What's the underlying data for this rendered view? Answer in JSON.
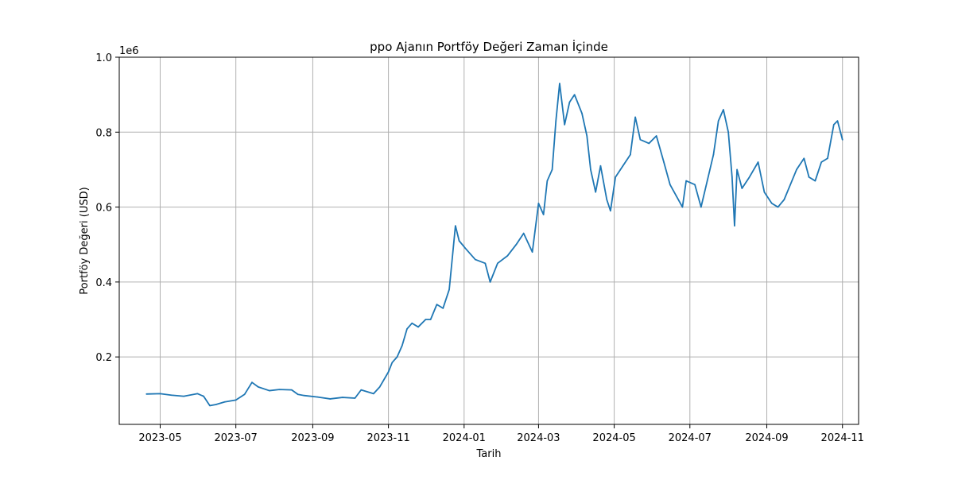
{
  "chart_data": {
    "type": "line",
    "title": "ppo Ajanın Portföy Değeri Zaman İçinde",
    "xlabel": "Tarih",
    "ylabel": "Portföy Değeri (USD)",
    "y_offset_label": "1e6",
    "grid": true,
    "legend": "none",
    "xlim": [
      "2023-03-29",
      "2024-11-14"
    ],
    "ylim": [
      0.02,
      1.0
    ],
    "x_ticks": [
      {
        "date": "2023-05-01",
        "label": "2023-05"
      },
      {
        "date": "2023-07-01",
        "label": "2023-07"
      },
      {
        "date": "2023-09-01",
        "label": "2023-09"
      },
      {
        "date": "2023-11-01",
        "label": "2023-11"
      },
      {
        "date": "2024-01-01",
        "label": "2024-01"
      },
      {
        "date": "2024-03-01",
        "label": "2024-03"
      },
      {
        "date": "2024-05-01",
        "label": "2024-05"
      },
      {
        "date": "2024-07-01",
        "label": "2024-07"
      },
      {
        "date": "2024-09-01",
        "label": "2024-09"
      },
      {
        "date": "2024-11-01",
        "label": "2024-11"
      }
    ],
    "y_ticks": [
      {
        "value": 0.2,
        "label": "0.2"
      },
      {
        "value": 0.4,
        "label": "0.4"
      },
      {
        "value": 0.6,
        "label": "0.6"
      },
      {
        "value": 0.8,
        "label": "0.8"
      },
      {
        "value": 1.0,
        "label": "1.0"
      }
    ],
    "series": [
      {
        "color": "#1f77b4",
        "points": [
          [
            "2023-04-20",
            0.101
          ],
          [
            "2023-05-01",
            0.102
          ],
          [
            "2023-05-10",
            0.098
          ],
          [
            "2023-05-20",
            0.095
          ],
          [
            "2023-05-31",
            0.102
          ],
          [
            "2023-06-05",
            0.095
          ],
          [
            "2023-06-10",
            0.07
          ],
          [
            "2023-06-15",
            0.073
          ],
          [
            "2023-06-22",
            0.08
          ],
          [
            "2023-07-01",
            0.085
          ],
          [
            "2023-07-08",
            0.1
          ],
          [
            "2023-07-14",
            0.132
          ],
          [
            "2023-07-19",
            0.12
          ],
          [
            "2023-07-28",
            0.11
          ],
          [
            "2023-08-05",
            0.113
          ],
          [
            "2023-08-15",
            0.112
          ],
          [
            "2023-08-20",
            0.1
          ],
          [
            "2023-08-25",
            0.097
          ],
          [
            "2023-09-05",
            0.093
          ],
          [
            "2023-09-15",
            0.088
          ],
          [
            "2023-09-25",
            0.092
          ],
          [
            "2023-10-05",
            0.09
          ],
          [
            "2023-10-10",
            0.112
          ],
          [
            "2023-10-20",
            0.102
          ],
          [
            "2023-10-25",
            0.12
          ],
          [
            "2023-11-01",
            0.16
          ],
          [
            "2023-11-04",
            0.185
          ],
          [
            "2023-11-08",
            0.2
          ],
          [
            "2023-11-12",
            0.23
          ],
          [
            "2023-11-16",
            0.275
          ],
          [
            "2023-11-20",
            0.29
          ],
          [
            "2023-11-25",
            0.28
          ],
          [
            "2023-12-01",
            0.3
          ],
          [
            "2023-12-05",
            0.3
          ],
          [
            "2023-12-10",
            0.34
          ],
          [
            "2023-12-15",
            0.33
          ],
          [
            "2023-12-20",
            0.38
          ],
          [
            "2023-12-25",
            0.55
          ],
          [
            "2023-12-28",
            0.51
          ],
          [
            "2024-01-02",
            0.49
          ],
          [
            "2024-01-10",
            0.46
          ],
          [
            "2024-01-18",
            0.45
          ],
          [
            "2024-01-22",
            0.4
          ],
          [
            "2024-01-28",
            0.45
          ],
          [
            "2024-02-05",
            0.47
          ],
          [
            "2024-02-12",
            0.5
          ],
          [
            "2024-02-18",
            0.53
          ],
          [
            "2024-02-25",
            0.48
          ],
          [
            "2024-03-01",
            0.61
          ],
          [
            "2024-03-05",
            0.58
          ],
          [
            "2024-03-08",
            0.67
          ],
          [
            "2024-03-12",
            0.7
          ],
          [
            "2024-03-15",
            0.83
          ],
          [
            "2024-03-18",
            0.93
          ],
          [
            "2024-03-22",
            0.82
          ],
          [
            "2024-03-26",
            0.88
          ],
          [
            "2024-03-30",
            0.9
          ],
          [
            "2024-04-05",
            0.85
          ],
          [
            "2024-04-09",
            0.79
          ],
          [
            "2024-04-12",
            0.7
          ],
          [
            "2024-04-16",
            0.64
          ],
          [
            "2024-04-20",
            0.71
          ],
          [
            "2024-04-25",
            0.62
          ],
          [
            "2024-04-28",
            0.59
          ],
          [
            "2024-05-02",
            0.68
          ],
          [
            "2024-05-08",
            0.71
          ],
          [
            "2024-05-14",
            0.74
          ],
          [
            "2024-05-18",
            0.84
          ],
          [
            "2024-05-22",
            0.78
          ],
          [
            "2024-05-29",
            0.77
          ],
          [
            "2024-06-04",
            0.79
          ],
          [
            "2024-06-10",
            0.72
          ],
          [
            "2024-06-15",
            0.66
          ],
          [
            "2024-06-20",
            0.63
          ],
          [
            "2024-06-25",
            0.6
          ],
          [
            "2024-06-28",
            0.67
          ],
          [
            "2024-07-05",
            0.66
          ],
          [
            "2024-07-10",
            0.6
          ],
          [
            "2024-07-15",
            0.67
          ],
          [
            "2024-07-20",
            0.74
          ],
          [
            "2024-07-24",
            0.83
          ],
          [
            "2024-07-28",
            0.86
          ],
          [
            "2024-08-01",
            0.8
          ],
          [
            "2024-08-04",
            0.68
          ],
          [
            "2024-08-06",
            0.55
          ],
          [
            "2024-08-08",
            0.7
          ],
          [
            "2024-08-12",
            0.65
          ],
          [
            "2024-08-18",
            0.68
          ],
          [
            "2024-08-25",
            0.72
          ],
          [
            "2024-08-30",
            0.64
          ],
          [
            "2024-09-05",
            0.61
          ],
          [
            "2024-09-10",
            0.6
          ],
          [
            "2024-09-15",
            0.62
          ],
          [
            "2024-09-20",
            0.66
          ],
          [
            "2024-09-25",
            0.7
          ],
          [
            "2024-10-01",
            0.73
          ],
          [
            "2024-10-05",
            0.68
          ],
          [
            "2024-10-10",
            0.67
          ],
          [
            "2024-10-15",
            0.72
          ],
          [
            "2024-10-20",
            0.73
          ],
          [
            "2024-10-25",
            0.82
          ],
          [
            "2024-10-28",
            0.83
          ],
          [
            "2024-11-01",
            0.78
          ]
        ]
      }
    ]
  }
}
